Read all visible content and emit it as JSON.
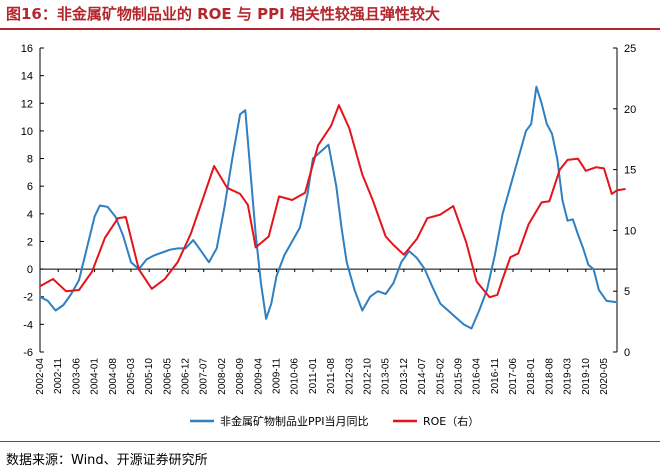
{
  "header": {
    "title": "图16：非金属矿物制品业的 ROE 与 PPI 相关性较强且弹性较大"
  },
  "footer": {
    "source": "数据来源：Wind、开源证券研究所"
  },
  "colors": {
    "ppi": "#2f7fc1",
    "roe": "#e3141b",
    "accent": "#b4262c"
  },
  "chart_data": {
    "type": "line",
    "title": "图16：非金属矿物制品业的 ROE 与 PPI 相关性较强且弹性较大",
    "x_tick_labels": [
      "2002-04",
      "2002-11",
      "2003-06",
      "2004-01",
      "2004-08",
      "2005-03",
      "2005-10",
      "2006-05",
      "2006-12",
      "2007-07",
      "2008-02",
      "2008-09",
      "2009-04",
      "2009-11",
      "2010-06",
      "2011-01",
      "2011-08",
      "2012-03",
      "2012-10",
      "2013-05",
      "2013-12",
      "2014-07",
      "2015-02",
      "2015-09",
      "2016-04",
      "2016-11",
      "2017-06",
      "2018-01",
      "2018-08",
      "2019-03",
      "2019-10",
      "2020-05"
    ],
    "x_range": [
      "2002-04",
      "2020-10"
    ],
    "y_left": {
      "min": -6,
      "max": 16,
      "ticks": [
        -6,
        -4,
        -2,
        0,
        2,
        4,
        6,
        8,
        10,
        12,
        14,
        16
      ]
    },
    "y_right": {
      "min": 0,
      "max": 25,
      "ticks": [
        0,
        5,
        10,
        15,
        20,
        25
      ]
    },
    "legend_position": "bottom",
    "grid": false,
    "series": [
      {
        "name": "非金属矿物制品业PPI当月同比",
        "axis": "left",
        "color": "#2f7fc1",
        "points": [
          [
            "2002-04",
            -2.0
          ],
          [
            "2002-07",
            -2.3
          ],
          [
            "2002-10",
            -3.0
          ],
          [
            "2003-01",
            -2.6
          ],
          [
            "2003-04",
            -1.8
          ],
          [
            "2003-07",
            -0.8
          ],
          [
            "2003-10",
            1.5
          ],
          [
            "2004-01",
            3.8
          ],
          [
            "2004-03",
            4.6
          ],
          [
            "2004-06",
            4.5
          ],
          [
            "2004-09",
            3.8
          ],
          [
            "2004-12",
            2.4
          ],
          [
            "2005-03",
            0.5
          ],
          [
            "2005-06",
            0.0
          ],
          [
            "2005-09",
            0.7
          ],
          [
            "2005-12",
            1.0
          ],
          [
            "2006-03",
            1.2
          ],
          [
            "2006-06",
            1.4
          ],
          [
            "2006-09",
            1.5
          ],
          [
            "2006-12",
            1.5
          ],
          [
            "2007-03",
            2.1
          ],
          [
            "2007-06",
            1.3
          ],
          [
            "2007-09",
            0.5
          ],
          [
            "2007-12",
            1.5
          ],
          [
            "2008-03",
            4.5
          ],
          [
            "2008-06",
            8.0
          ],
          [
            "2008-09",
            11.2
          ],
          [
            "2008-11",
            11.5
          ],
          [
            "2009-01",
            7.0
          ],
          [
            "2009-03",
            2.5
          ],
          [
            "2009-05",
            -1.0
          ],
          [
            "2009-07",
            -3.6
          ],
          [
            "2009-09",
            -2.5
          ],
          [
            "2009-11",
            -0.5
          ],
          [
            "2010-02",
            1.0
          ],
          [
            "2010-05",
            2.0
          ],
          [
            "2010-08",
            3.0
          ],
          [
            "2010-11",
            5.5
          ],
          [
            "2011-01",
            8.0
          ],
          [
            "2011-04",
            8.5
          ],
          [
            "2011-07",
            9.0
          ],
          [
            "2011-10",
            6.0
          ],
          [
            "2011-12",
            3.0
          ],
          [
            "2012-02",
            0.5
          ],
          [
            "2012-05",
            -1.5
          ],
          [
            "2012-08",
            -3.0
          ],
          [
            "2012-11",
            -2.0
          ],
          [
            "2013-02",
            -1.6
          ],
          [
            "2013-05",
            -1.8
          ],
          [
            "2013-08",
            -1.0
          ],
          [
            "2013-11",
            0.5
          ],
          [
            "2014-02",
            1.3
          ],
          [
            "2014-05",
            0.8
          ],
          [
            "2014-08",
            0.0
          ],
          [
            "2014-11",
            -1.3
          ],
          [
            "2015-02",
            -2.5
          ],
          [
            "2015-05",
            -3.0
          ],
          [
            "2015-08",
            -3.5
          ],
          [
            "2015-11",
            -4.0
          ],
          [
            "2016-02",
            -4.3
          ],
          [
            "2016-05",
            -3.0
          ],
          [
            "2016-08",
            -1.5
          ],
          [
            "2016-11",
            1.0
          ],
          [
            "2017-02",
            4.0
          ],
          [
            "2017-05",
            6.0
          ],
          [
            "2017-08",
            8.0
          ],
          [
            "2017-11",
            10.0
          ],
          [
            "2018-01",
            10.5
          ],
          [
            "2018-03",
            13.2
          ],
          [
            "2018-05",
            12.0
          ],
          [
            "2018-07",
            10.5
          ],
          [
            "2018-09",
            9.8
          ],
          [
            "2018-11",
            8.0
          ],
          [
            "2019-01",
            5.0
          ],
          [
            "2019-03",
            3.5
          ],
          [
            "2019-05",
            3.6
          ],
          [
            "2019-07",
            2.5
          ],
          [
            "2019-09",
            1.5
          ],
          [
            "2019-11",
            0.3
          ],
          [
            "2020-01",
            0.0
          ],
          [
            "2020-03",
            -1.5
          ],
          [
            "2020-06",
            -2.3
          ],
          [
            "2020-10",
            -2.4
          ]
        ]
      },
      {
        "name": "ROE（右）",
        "axis": "right",
        "color": "#e3141b",
        "points": [
          [
            "2002-04",
            5.4
          ],
          [
            "2002-09",
            6.0
          ],
          [
            "2003-02",
            5.0
          ],
          [
            "2003-07",
            5.1
          ],
          [
            "2003-12",
            6.6
          ],
          [
            "2004-05",
            9.4
          ],
          [
            "2004-10",
            11.0
          ],
          [
            "2005-01",
            11.1
          ],
          [
            "2005-06",
            6.8
          ],
          [
            "2005-11",
            5.2
          ],
          [
            "2006-04",
            6.0
          ],
          [
            "2006-09",
            7.4
          ],
          [
            "2007-02",
            9.7
          ],
          [
            "2007-07",
            12.8
          ],
          [
            "2007-11",
            15.3
          ],
          [
            "2008-04",
            13.5
          ],
          [
            "2008-09",
            13.0
          ],
          [
            "2008-12",
            12.1
          ],
          [
            "2009-03",
            8.6
          ],
          [
            "2009-08",
            9.5
          ],
          [
            "2009-12",
            12.8
          ],
          [
            "2010-05",
            12.5
          ],
          [
            "2010-10",
            13.1
          ],
          [
            "2011-03",
            17.0
          ],
          [
            "2011-08",
            18.6
          ],
          [
            "2011-11",
            20.3
          ],
          [
            "2012-03",
            18.4
          ],
          [
            "2012-08",
            14.6
          ],
          [
            "2012-12",
            12.5
          ],
          [
            "2013-05",
            9.5
          ],
          [
            "2013-08",
            8.8
          ],
          [
            "2013-12",
            8.0
          ],
          [
            "2014-05",
            9.3
          ],
          [
            "2014-09",
            11.0
          ],
          [
            "2015-02",
            11.3
          ],
          [
            "2015-07",
            12.0
          ],
          [
            "2015-12",
            9.0
          ],
          [
            "2016-04",
            5.8
          ],
          [
            "2016-09",
            4.5
          ],
          [
            "2016-12",
            4.7
          ],
          [
            "2017-02",
            6.0
          ],
          [
            "2017-05",
            7.8
          ],
          [
            "2017-08",
            8.1
          ],
          [
            "2017-12",
            10.5
          ],
          [
            "2018-05",
            12.3
          ],
          [
            "2018-08",
            12.4
          ],
          [
            "2018-12",
            15.0
          ],
          [
            "2019-03",
            15.8
          ],
          [
            "2019-07",
            15.9
          ],
          [
            "2019-10",
            14.9
          ],
          [
            "2020-02",
            15.2
          ],
          [
            "2020-05",
            15.1
          ],
          [
            "2020-08",
            13.0
          ],
          [
            "2020-10",
            13.3
          ],
          [
            "2021-01",
            13.4
          ]
        ]
      }
    ]
  }
}
